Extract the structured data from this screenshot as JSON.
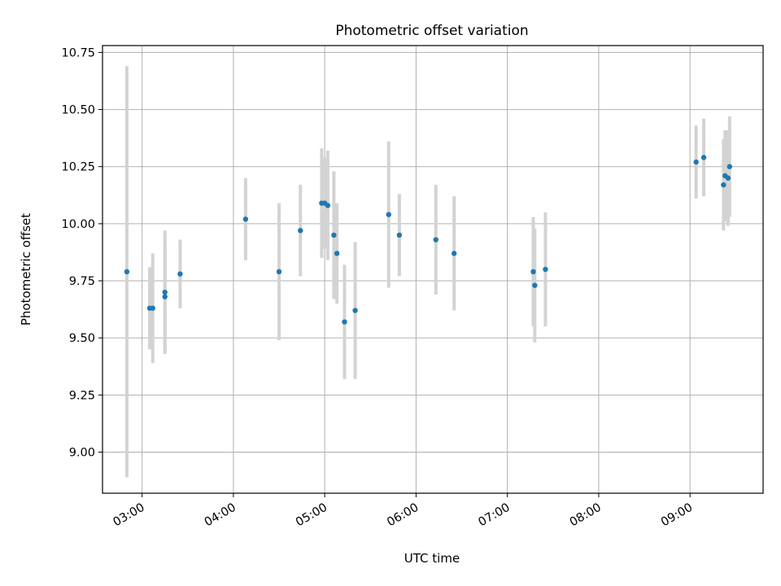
{
  "chart_data": {
    "type": "scatter",
    "title": "Photometric offset variation",
    "xlabel": "UTC time",
    "ylabel": "Photometric offset",
    "x_unit": "UTC time (HH:MM)",
    "xlim": [
      "02:34",
      "09:48"
    ],
    "ylim": [
      8.82,
      10.78
    ],
    "x_ticks": [
      "03:00",
      "04:00",
      "05:00",
      "06:00",
      "07:00",
      "08:00",
      "09:00"
    ],
    "y_ticks": [
      9.0,
      9.25,
      9.5,
      9.75,
      10.0,
      10.25,
      10.5,
      10.75
    ],
    "y_tick_labels": [
      "9.00",
      "9.25",
      "9.50",
      "9.75",
      "10.00",
      "10.25",
      "10.50",
      "10.75"
    ],
    "x_tick_rotation_deg": 30,
    "grid": true,
    "marker_color": "#1f77b4",
    "errorbar_color": "#d3d3d3",
    "points": [
      {
        "x": "02:50",
        "y": 9.79,
        "err": 0.9
      },
      {
        "x": "03:05",
        "y": 9.63,
        "err": 0.18
      },
      {
        "x": "03:07",
        "y": 9.63,
        "err": 0.24
      },
      {
        "x": "03:15",
        "y": 9.7,
        "err": 0.27
      },
      {
        "x": "03:15",
        "y": 9.68,
        "err": 0.24
      },
      {
        "x": "03:25",
        "y": 9.78,
        "err": 0.15
      },
      {
        "x": "04:08",
        "y": 10.02,
        "err": 0.18
      },
      {
        "x": "04:30",
        "y": 9.79,
        "err": 0.3
      },
      {
        "x": "04:44",
        "y": 9.97,
        "err": 0.2
      },
      {
        "x": "04:58",
        "y": 10.09,
        "err": 0.24
      },
      {
        "x": "05:00",
        "y": 10.09,
        "err": 0.2
      },
      {
        "x": "05:02",
        "y": 10.08,
        "err": 0.24
      },
      {
        "x": "05:06",
        "y": 9.95,
        "err": 0.28
      },
      {
        "x": "05:08",
        "y": 9.87,
        "err": 0.22
      },
      {
        "x": "05:13",
        "y": 9.57,
        "err": 0.25
      },
      {
        "x": "05:20",
        "y": 9.62,
        "err": 0.3
      },
      {
        "x": "05:42",
        "y": 10.04,
        "err": 0.32
      },
      {
        "x": "05:49",
        "y": 9.95,
        "err": 0.18
      },
      {
        "x": "06:13",
        "y": 9.93,
        "err": 0.24
      },
      {
        "x": "06:25",
        "y": 9.87,
        "err": 0.25
      },
      {
        "x": "07:17",
        "y": 9.79,
        "err": 0.24
      },
      {
        "x": "07:18",
        "y": 9.73,
        "err": 0.25
      },
      {
        "x": "07:25",
        "y": 9.8,
        "err": 0.25
      },
      {
        "x": "09:04",
        "y": 10.27,
        "err": 0.16
      },
      {
        "x": "09:09",
        "y": 10.29,
        "err": 0.17
      },
      {
        "x": "09:22",
        "y": 10.17,
        "err": 0.2
      },
      {
        "x": "09:23",
        "y": 10.21,
        "err": 0.2
      },
      {
        "x": "09:25",
        "y": 10.2,
        "err": 0.21
      },
      {
        "x": "09:26",
        "y": 10.25,
        "err": 0.22
      }
    ]
  }
}
